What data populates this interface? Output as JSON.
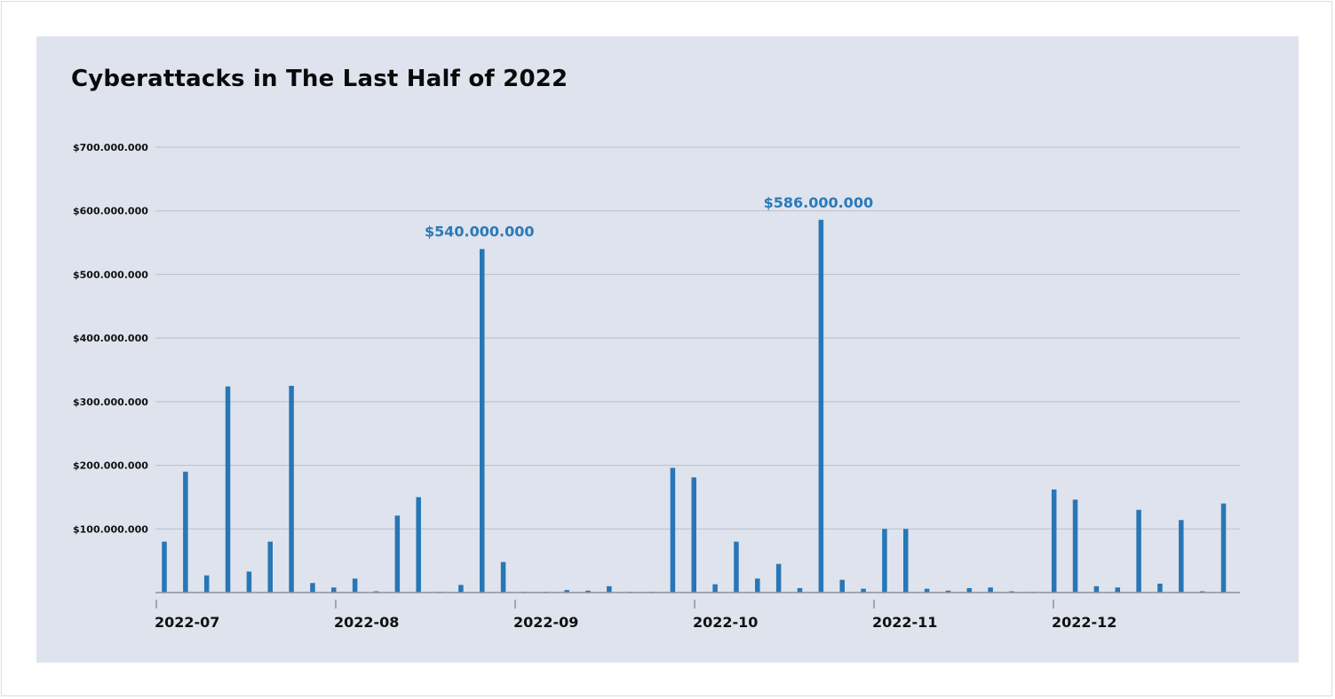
{
  "chart_data": {
    "type": "bar",
    "title": "Cyberattacks in The Last Half of 2022",
    "xlabel": "",
    "ylabel": "",
    "ylim": [
      0,
      700000000
    ],
    "y_ticks": [
      {
        "value": 100000000,
        "label": "$100.000.000"
      },
      {
        "value": 200000000,
        "label": "$200.000.000"
      },
      {
        "value": 300000000,
        "label": "$300.000.000"
      },
      {
        "value": 400000000,
        "label": "$400.000.000"
      },
      {
        "value": 500000000,
        "label": "$500.000.000"
      },
      {
        "value": 600000000,
        "label": "$600.000.000"
      },
      {
        "value": 700000000,
        "label": "$700.000.000"
      }
    ],
    "x_ticks": [
      "2022-07",
      "2022-08",
      "2022-09",
      "2022-10",
      "2022-11",
      "2022-12"
    ],
    "grid": true,
    "bar_color": "#2777b6",
    "values": [
      80000000,
      190000000,
      27000000,
      324000000,
      33000000,
      80000000,
      325000000,
      15000000,
      8000000,
      22000000,
      2000000,
      121000000,
      150000000,
      1000000,
      12000000,
      540000000,
      48000000,
      1000000,
      1000000,
      4000000,
      3000000,
      10000000,
      1000000,
      1000000,
      196000000,
      181000000,
      13000000,
      80000000,
      22000000,
      45000000,
      7000000,
      586000000,
      20000000,
      6000000,
      100000000,
      100000000,
      6000000,
      3000000,
      7000000,
      8000000,
      2000000,
      1000000,
      162000000,
      146000000,
      10000000,
      8000000,
      130000000,
      14000000,
      114000000,
      2000000,
      140000000
    ],
    "annotations": [
      {
        "index": 15,
        "label": "$540.000.000"
      },
      {
        "index": 31,
        "label": "$586.000.000"
      }
    ]
  }
}
